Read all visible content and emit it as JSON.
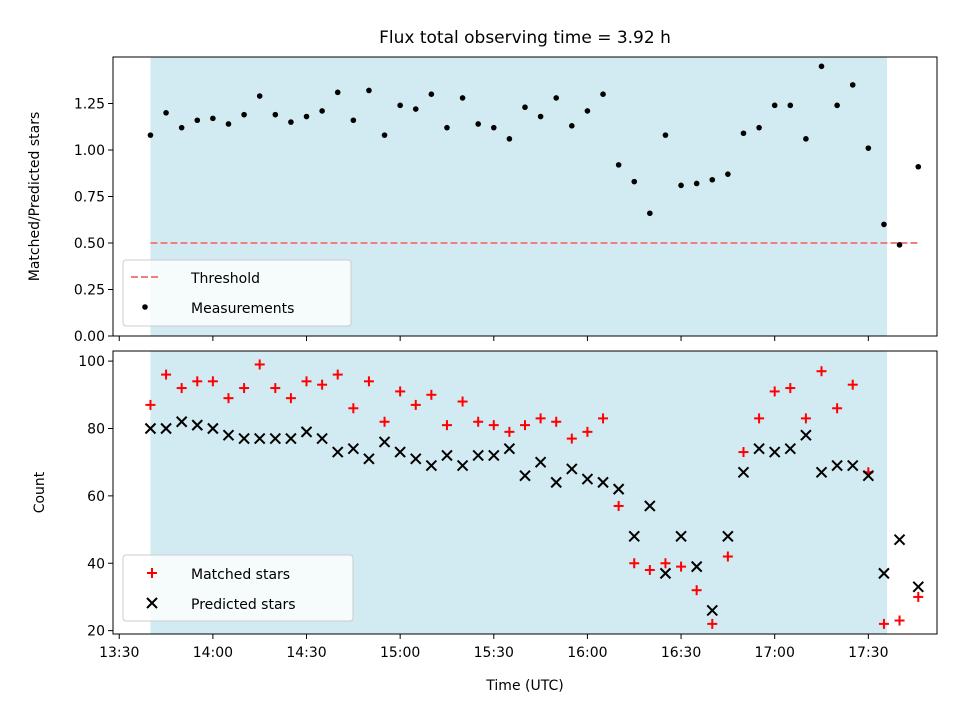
{
  "chart_data": [
    {
      "type": "scatter",
      "title": "Flux total observing time = 3.92 h",
      "xlabel": "",
      "ylabel": "Matched/Predicted stars",
      "xlim": [
        "13:28",
        "17:52"
      ],
      "ylim": [
        0,
        1.5
      ],
      "x_ticks": [
        "13:30",
        "14:00",
        "14:30",
        "15:00",
        "15:30",
        "16:00",
        "16:30",
        "17:00",
        "17:30"
      ],
      "y_ticks": [
        "0.00",
        "0.25",
        "0.50",
        "0.75",
        "1.00",
        "1.25"
      ],
      "shaded_span": [
        "13:40",
        "17:36"
      ],
      "shaded_color": "#add8e6",
      "legend_position": "lower left",
      "threshold": {
        "name": "Threshold",
        "value": 0.5,
        "x_start": "13:40",
        "x_end": "17:46",
        "color": "#f08080",
        "style": "dashed"
      },
      "series": [
        {
          "name": "Measurements",
          "color": "#000000",
          "marker": "dot",
          "x": [
            "13:40",
            "13:45",
            "13:50",
            "13:55",
            "14:00",
            "14:05",
            "14:10",
            "14:15",
            "14:20",
            "14:25",
            "14:30",
            "14:35",
            "14:40",
            "14:45",
            "14:50",
            "14:55",
            "15:00",
            "15:05",
            "15:10",
            "15:15",
            "15:20",
            "15:25",
            "15:30",
            "15:35",
            "15:40",
            "15:45",
            "15:50",
            "15:55",
            "16:00",
            "16:05",
            "16:10",
            "16:15",
            "16:20",
            "16:25",
            "16:30",
            "16:35",
            "16:40",
            "16:45",
            "16:50",
            "16:55",
            "17:00",
            "17:05",
            "17:10",
            "17:15",
            "17:20",
            "17:25",
            "17:30",
            "17:35",
            "17:40",
            "17:46"
          ],
          "y": [
            1.08,
            1.2,
            1.12,
            1.16,
            1.17,
            1.14,
            1.19,
            1.29,
            1.19,
            1.15,
            1.18,
            1.21,
            1.31,
            1.16,
            1.32,
            1.08,
            1.24,
            1.22,
            1.3,
            1.12,
            1.28,
            1.14,
            1.12,
            1.06,
            1.23,
            1.18,
            1.28,
            1.13,
            1.21,
            1.3,
            0.92,
            0.83,
            0.66,
            1.08,
            0.81,
            0.82,
            0.84,
            0.87,
            1.09,
            1.12,
            1.24,
            1.24,
            1.06,
            1.45,
            1.24,
            1.35,
            1.01,
            0.6,
            0.49,
            0.91
          ]
        }
      ]
    },
    {
      "type": "scatter",
      "title": "",
      "xlabel": "Time (UTC)",
      "ylabel": "Count",
      "xlim": [
        "13:28",
        "17:52"
      ],
      "ylim": [
        19,
        103
      ],
      "x_ticks": [
        "13:30",
        "14:00",
        "14:30",
        "15:00",
        "15:30",
        "16:00",
        "16:30",
        "17:00",
        "17:30"
      ],
      "y_ticks": [
        "20",
        "40",
        "60",
        "80",
        "100"
      ],
      "shaded_span": [
        "13:40",
        "17:36"
      ],
      "shaded_color": "#add8e6",
      "legend_position": "lower left",
      "series": [
        {
          "name": "Matched stars",
          "color": "#ff0000",
          "marker": "plus",
          "x": [
            "13:40",
            "13:45",
            "13:50",
            "13:55",
            "14:00",
            "14:05",
            "14:10",
            "14:15",
            "14:20",
            "14:25",
            "14:30",
            "14:35",
            "14:40",
            "14:45",
            "14:50",
            "14:55",
            "15:00",
            "15:05",
            "15:10",
            "15:15",
            "15:20",
            "15:25",
            "15:30",
            "15:35",
            "15:40",
            "15:45",
            "15:50",
            "15:55",
            "16:00",
            "16:05",
            "16:10",
            "16:15",
            "16:20",
            "16:25",
            "16:30",
            "16:35",
            "16:40",
            "16:45",
            "16:50",
            "16:55",
            "17:00",
            "17:05",
            "17:10",
            "17:15",
            "17:20",
            "17:25",
            "17:30",
            "17:35",
            "17:40",
            "17:46"
          ],
          "y": [
            87,
            96,
            92,
            94,
            94,
            89,
            92,
            99,
            92,
            89,
            94,
            93,
            96,
            86,
            94,
            82,
            91,
            87,
            90,
            81,
            88,
            82,
            81,
            79,
            81,
            83,
            82,
            77,
            79,
            83,
            57,
            40,
            38,
            40,
            39,
            32,
            22,
            42,
            73,
            83,
            91,
            92,
            83,
            97,
            86,
            93,
            67,
            22,
            23,
            30
          ]
        },
        {
          "name": "Predicted stars",
          "color": "#000000",
          "marker": "x",
          "x": [
            "13:40",
            "13:45",
            "13:50",
            "13:55",
            "14:00",
            "14:05",
            "14:10",
            "14:15",
            "14:20",
            "14:25",
            "14:30",
            "14:35",
            "14:40",
            "14:45",
            "14:50",
            "14:55",
            "15:00",
            "15:05",
            "15:10",
            "15:15",
            "15:20",
            "15:25",
            "15:30",
            "15:35",
            "15:40",
            "15:45",
            "15:50",
            "15:55",
            "16:00",
            "16:05",
            "16:10",
            "16:15",
            "16:20",
            "16:25",
            "16:30",
            "16:35",
            "16:40",
            "16:45",
            "16:50",
            "16:55",
            "17:00",
            "17:05",
            "17:10",
            "17:15",
            "17:20",
            "17:25",
            "17:30",
            "17:35",
            "17:40",
            "17:46"
          ],
          "y": [
            80,
            80,
            82,
            81,
            80,
            78,
            77,
            77,
            77,
            77,
            79,
            77,
            73,
            74,
            71,
            76,
            73,
            71,
            69,
            72,
            69,
            72,
            72,
            74,
            66,
            70,
            64,
            68,
            65,
            64,
            62,
            48,
            57,
            37,
            48,
            39,
            26,
            48,
            67,
            74,
            73,
            74,
            78,
            67,
            69,
            69,
            66,
            37,
            47,
            33
          ]
        }
      ]
    }
  ]
}
